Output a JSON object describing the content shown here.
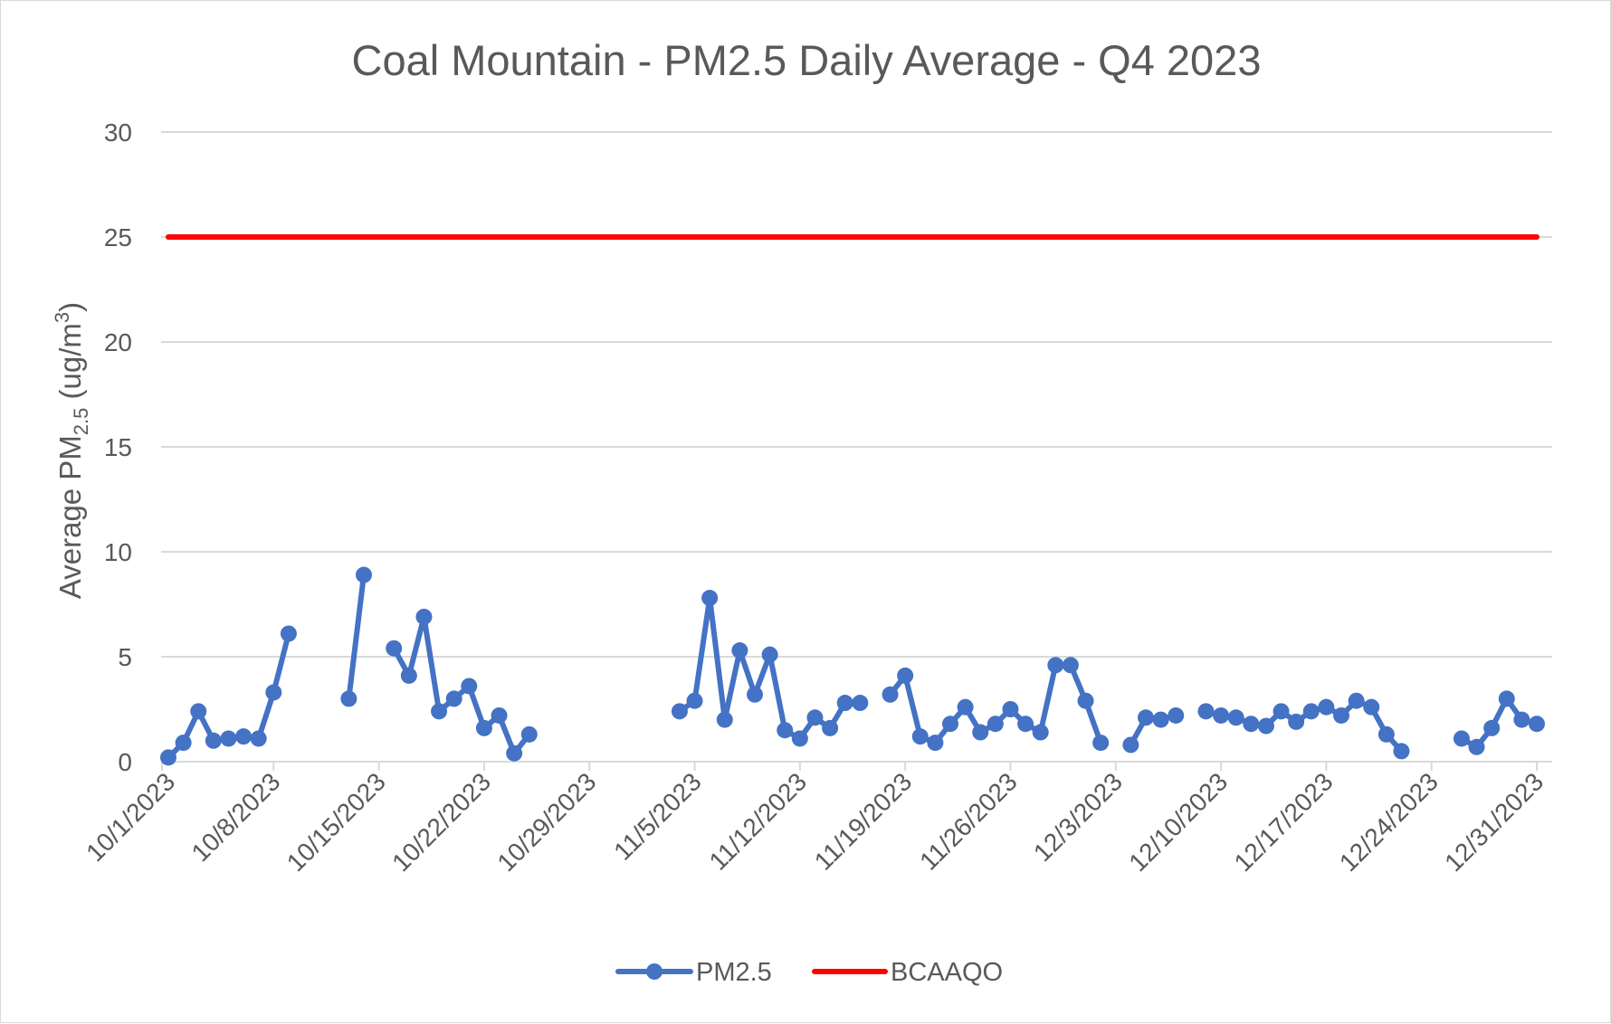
{
  "chart_data": {
    "type": "line",
    "title": "Coal Mountain - PM2.5 Daily Average - Q4 2023",
    "ylabel": {
      "main": "Average PM",
      "sub": "2.5",
      "unit": " (ug/m",
      "sup": "3",
      "close": ")"
    },
    "xlabel": "",
    "ylim": [
      0,
      30
    ],
    "yticks": [
      0,
      5,
      10,
      15,
      20,
      25,
      30
    ],
    "xticks": [
      "10/1/2023",
      "10/8/2023",
      "10/15/2023",
      "10/22/2023",
      "10/29/2023",
      "11/5/2023",
      "11/12/2023",
      "11/19/2023",
      "11/26/2023",
      "12/3/2023",
      "12/10/2023",
      "12/17/2023",
      "12/24/2023",
      "12/31/2023"
    ],
    "x_start": "10/1/2023",
    "x_end": "12/31/2023",
    "grid": true,
    "legend_position": "bottom",
    "series": [
      {
        "name": "PM2.5",
        "color": "#4472C4",
        "marker": "circle",
        "points": [
          {
            "x": "10/1/2023",
            "y": 0.2
          },
          {
            "x": "10/2/2023",
            "y": 0.9
          },
          {
            "x": "10/3/2023",
            "y": 2.4
          },
          {
            "x": "10/4/2023",
            "y": 1.0
          },
          {
            "x": "10/5/2023",
            "y": 1.1
          },
          {
            "x": "10/6/2023",
            "y": 1.2
          },
          {
            "x": "10/7/2023",
            "y": 1.1
          },
          {
            "x": "10/8/2023",
            "y": 3.3
          },
          {
            "x": "10/9/2023",
            "y": 6.1
          },
          {
            "x": "10/10/2023",
            "y": null
          },
          {
            "x": "10/11/2023",
            "y": null
          },
          {
            "x": "10/12/2023",
            "y": null
          },
          {
            "x": "10/13/2023",
            "y": 3.0
          },
          {
            "x": "10/14/2023",
            "y": 8.9
          },
          {
            "x": "10/15/2023",
            "y": null
          },
          {
            "x": "10/16/2023",
            "y": 5.4
          },
          {
            "x": "10/17/2023",
            "y": 4.1
          },
          {
            "x": "10/18/2023",
            "y": 6.9
          },
          {
            "x": "10/19/2023",
            "y": 2.4
          },
          {
            "x": "10/20/2023",
            "y": 3.0
          },
          {
            "x": "10/21/2023",
            "y": 3.6
          },
          {
            "x": "10/22/2023",
            "y": 1.6
          },
          {
            "x": "10/23/2023",
            "y": 2.2
          },
          {
            "x": "10/24/2023",
            "y": 0.4
          },
          {
            "x": "10/25/2023",
            "y": 1.3
          },
          {
            "x": "10/26/2023",
            "y": null
          },
          {
            "x": "10/27/2023",
            "y": null
          },
          {
            "x": "10/28/2023",
            "y": null
          },
          {
            "x": "10/29/2023",
            "y": null
          },
          {
            "x": "10/30/2023",
            "y": null
          },
          {
            "x": "10/31/2023",
            "y": null
          },
          {
            "x": "11/1/2023",
            "y": null
          },
          {
            "x": "11/2/2023",
            "y": null
          },
          {
            "x": "11/3/2023",
            "y": null
          },
          {
            "x": "11/4/2023",
            "y": 2.4
          },
          {
            "x": "11/5/2023",
            "y": 2.9
          },
          {
            "x": "11/6/2023",
            "y": 7.8
          },
          {
            "x": "11/7/2023",
            "y": 2.0
          },
          {
            "x": "11/8/2023",
            "y": 5.3
          },
          {
            "x": "11/9/2023",
            "y": 3.2
          },
          {
            "x": "11/10/2023",
            "y": 5.1
          },
          {
            "x": "11/11/2023",
            "y": 1.5
          },
          {
            "x": "11/12/2023",
            "y": 1.1
          },
          {
            "x": "11/13/2023",
            "y": 2.1
          },
          {
            "x": "11/14/2023",
            "y": 1.6
          },
          {
            "x": "11/15/2023",
            "y": 2.8
          },
          {
            "x": "11/16/2023",
            "y": 2.8
          },
          {
            "x": "11/17/2023",
            "y": null
          },
          {
            "x": "11/18/2023",
            "y": 3.2
          },
          {
            "x": "11/19/2023",
            "y": 4.1
          },
          {
            "x": "11/20/2023",
            "y": 1.2
          },
          {
            "x": "11/21/2023",
            "y": 0.9
          },
          {
            "x": "11/22/2023",
            "y": 1.8
          },
          {
            "x": "11/23/2023",
            "y": 2.6
          },
          {
            "x": "11/24/2023",
            "y": 1.4
          },
          {
            "x": "11/25/2023",
            "y": 1.8
          },
          {
            "x": "11/26/2023",
            "y": 2.5
          },
          {
            "x": "11/27/2023",
            "y": 1.8
          },
          {
            "x": "11/28/2023",
            "y": 1.4
          },
          {
            "x": "11/29/2023",
            "y": 4.6
          },
          {
            "x": "11/30/2023",
            "y": 4.6
          },
          {
            "x": "12/1/2023",
            "y": 2.9
          },
          {
            "x": "12/2/2023",
            "y": 0.9
          },
          {
            "x": "12/3/2023",
            "y": null
          },
          {
            "x": "12/4/2023",
            "y": 0.8
          },
          {
            "x": "12/5/2023",
            "y": 2.1
          },
          {
            "x": "12/6/2023",
            "y": 2.0
          },
          {
            "x": "12/7/2023",
            "y": 2.2
          },
          {
            "x": "12/8/2023",
            "y": null
          },
          {
            "x": "12/9/2023",
            "y": 2.4
          },
          {
            "x": "12/10/2023",
            "y": 2.2
          },
          {
            "x": "12/11/2023",
            "y": 2.1
          },
          {
            "x": "12/12/2023",
            "y": 1.8
          },
          {
            "x": "12/13/2023",
            "y": 1.7
          },
          {
            "x": "12/14/2023",
            "y": 2.4
          },
          {
            "x": "12/15/2023",
            "y": 1.9
          },
          {
            "x": "12/16/2023",
            "y": 2.4
          },
          {
            "x": "12/17/2023",
            "y": 2.6
          },
          {
            "x": "12/18/2023",
            "y": 2.2
          },
          {
            "x": "12/19/2023",
            "y": 2.9
          },
          {
            "x": "12/20/2023",
            "y": 2.6
          },
          {
            "x": "12/21/2023",
            "y": 1.3
          },
          {
            "x": "12/22/2023",
            "y": 0.5
          },
          {
            "x": "12/23/2023",
            "y": null
          },
          {
            "x": "12/24/2023",
            "y": null
          },
          {
            "x": "12/25/2023",
            "y": null
          },
          {
            "x": "12/26/2023",
            "y": 1.1
          },
          {
            "x": "12/27/2023",
            "y": 0.7
          },
          {
            "x": "12/28/2023",
            "y": 1.6
          },
          {
            "x": "12/29/2023",
            "y": 3.0
          },
          {
            "x": "12/30/2023",
            "y": 2.0
          },
          {
            "x": "12/31/2023",
            "y": 1.8
          }
        ]
      },
      {
        "name": "BCAAQO",
        "color": "#FF0000",
        "marker": "none",
        "points": [
          {
            "x": "10/1/2023",
            "y": 25
          },
          {
            "x": "12/31/2023",
            "y": 25
          }
        ]
      }
    ]
  }
}
